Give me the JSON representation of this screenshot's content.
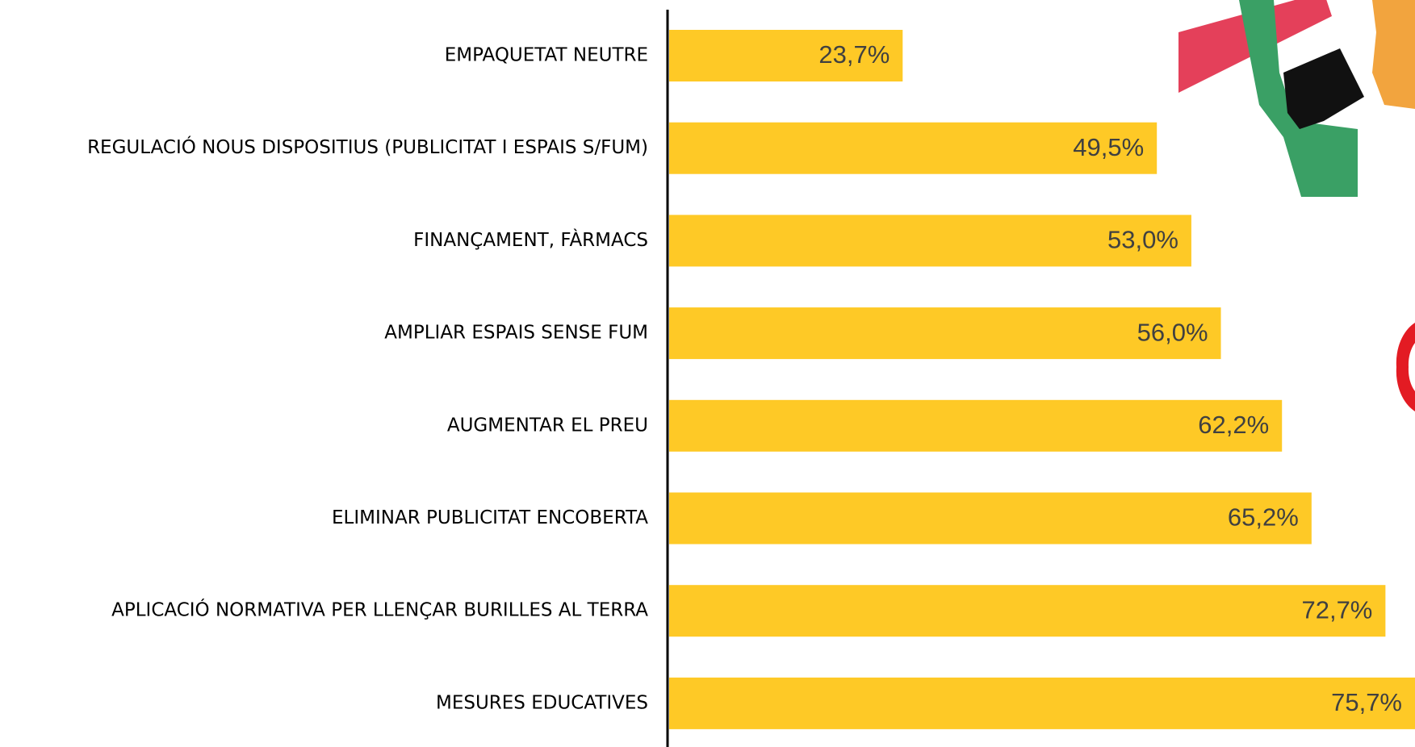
{
  "chart_data": {
    "type": "bar",
    "orientation": "horizontal",
    "categories": [
      "EMPAQUETAT NEUTRE",
      "REGULACIÓ NOUS DISPOSITIUS (PUBLICITAT I ESPAIS S/FUM)",
      "FINANÇAMENT, FÀRMACS",
      "AMPLIAR ESPAIS SENSE FUM",
      "AUGMENTAR EL PREU",
      "ELIMINAR PUBLICITAT ENCOBERTA",
      "APLICACIÓ NORMATIVA PER LLENÇAR BURILLES AL TERRA",
      "MESURES EDUCATIVES"
    ],
    "values": [
      23.7,
      49.5,
      53.0,
      56.0,
      62.2,
      65.2,
      72.7,
      75.7
    ],
    "value_labels": [
      "23,7%",
      "49,5%",
      "53,0%",
      "56,0%",
      "62,2%",
      "65,2%",
      "72,7%",
      "75,7%"
    ],
    "color": "#fec926"
  }
}
